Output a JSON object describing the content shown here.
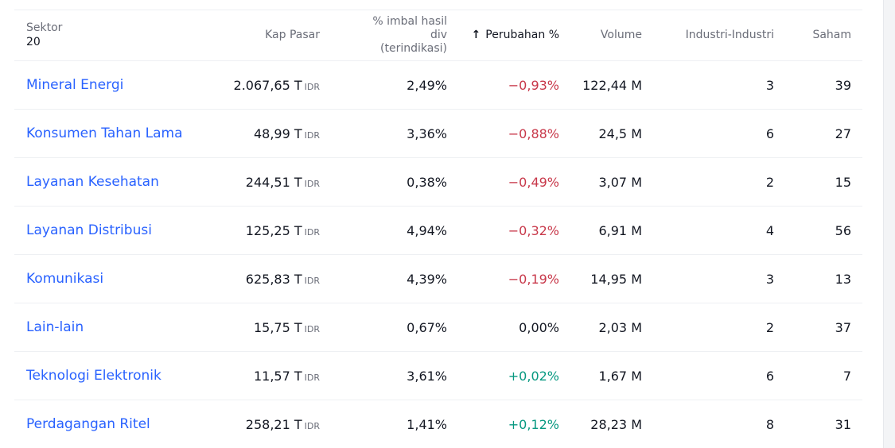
{
  "header": {
    "sector_label": "Sektor",
    "sector_count": "20",
    "market_cap": "Kap Pasar",
    "div_yield_line1": "% imbal hasil",
    "div_yield_line2": "div",
    "div_yield_line3": "(terindikasi)",
    "sort_arrow": "↑",
    "change": "Perubahan %",
    "volume": "Volume",
    "industries": "Industri-Industri",
    "stocks": "Saham"
  },
  "colors": {
    "link": "#2962ff",
    "negative": "#c8384a",
    "positive": "#089981"
  },
  "rows": [
    {
      "sector": "Mineral Energi",
      "market_cap": "2.067,65 T",
      "currency": "IDR",
      "div_yield": "2,49%",
      "change": "−0,93%",
      "change_dir": "neg",
      "volume": "122,44 M",
      "industries": "3",
      "stocks": "39"
    },
    {
      "sector": "Konsumen Tahan Lama",
      "market_cap": "48,99 T",
      "currency": "IDR",
      "div_yield": "3,36%",
      "change": "−0,88%",
      "change_dir": "neg",
      "volume": "24,5 M",
      "industries": "6",
      "stocks": "27"
    },
    {
      "sector": "Layanan Kesehatan",
      "market_cap": "244,51 T",
      "currency": "IDR",
      "div_yield": "0,38%",
      "change": "−0,49%",
      "change_dir": "neg",
      "volume": "3,07 M",
      "industries": "2",
      "stocks": "15"
    },
    {
      "sector": "Layanan Distribusi",
      "market_cap": "125,25 T",
      "currency": "IDR",
      "div_yield": "4,94%",
      "change": "−0,32%",
      "change_dir": "neg",
      "volume": "6,91 M",
      "industries": "4",
      "stocks": "56"
    },
    {
      "sector": "Komunikasi",
      "market_cap": "625,83 T",
      "currency": "IDR",
      "div_yield": "4,39%",
      "change": "−0,19%",
      "change_dir": "neg",
      "volume": "14,95 M",
      "industries": "3",
      "stocks": "13"
    },
    {
      "sector": "Lain-lain",
      "market_cap": "15,75 T",
      "currency": "IDR",
      "div_yield": "0,67%",
      "change": "0,00%",
      "change_dir": "flat",
      "volume": "2,03 M",
      "industries": "2",
      "stocks": "37"
    },
    {
      "sector": "Teknologi Elektronik",
      "market_cap": "11,57 T",
      "currency": "IDR",
      "div_yield": "3,61%",
      "change": "+0,02%",
      "change_dir": "pos",
      "volume": "1,67 M",
      "industries": "6",
      "stocks": "7"
    },
    {
      "sector": "Perdagangan Ritel",
      "market_cap": "258,21 T",
      "currency": "IDR",
      "div_yield": "1,41%",
      "change": "+0,12%",
      "change_dir": "pos",
      "volume": "28,23 M",
      "industries": "8",
      "stocks": "31"
    }
  ]
}
